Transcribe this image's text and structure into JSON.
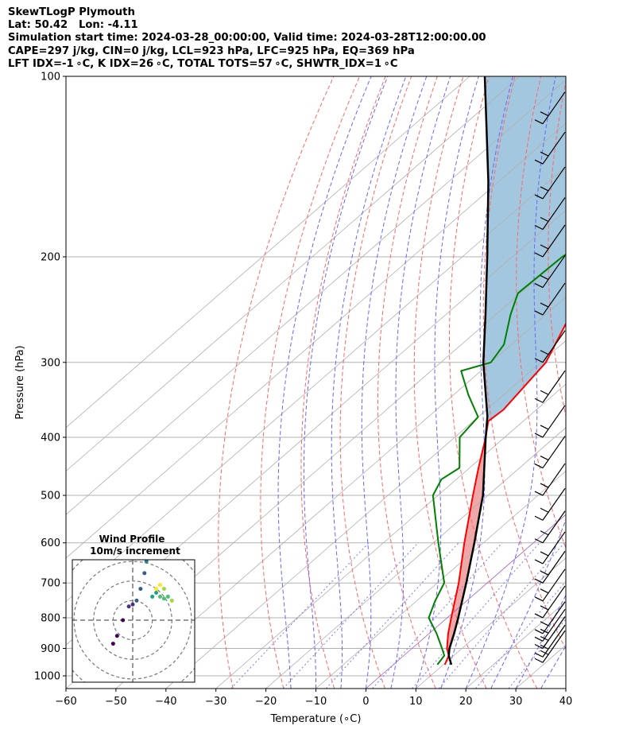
{
  "header": {
    "title": "SkewTLogP Plymouth",
    "location": "Lat: 50.42   Lon: -4.11",
    "times": "Simulation start time: 2024-03-28_00:00:00, Valid time: 2024-03-28T12:00:00.00",
    "indices1": "CAPE=297 j/kg, CIN=0 j/kg, LCL=923 hPa, LFC=925 hPa, EQ=369 hPa",
    "indices2": "LFT IDX=-1 ∘C, K IDX=26 ∘C, TOTAL TOTS=57 ∘C, SHWTR_IDX=1 ∘C"
  },
  "colors": {
    "temperature": "#ff0000",
    "dewpoint": "#008000",
    "parcel": "#000000",
    "cape_fill": "#a3c7df",
    "cin_fill": "#f0a7a7",
    "dry_adiabat": "#ff6666",
    "moist_adiabat": "#6666ff",
    "mixing_ratio": "#7777ff",
    "skew_isotherm": "#b0b0b0",
    "zero_isotherm": "#a060c8"
  },
  "chart_data": [
    {
      "type": "line",
      "subtype": "skew-t log-p",
      "xlabel": "Temperature (∘C)",
      "ylabel": "Pressure (hPa)",
      "xlim": [
        -60,
        40
      ],
      "ylim": [
        1050,
        100
      ],
      "y_scale": "log",
      "x_ticks": [
        -60,
        -50,
        -40,
        -30,
        -20,
        -10,
        0,
        10,
        20,
        30,
        40
      ],
      "x_tick_labels": [
        "−60",
        "−50",
        "−40",
        "−30",
        "−20",
        "−10",
        "0",
        "10",
        "20",
        "30",
        "40"
      ],
      "y_ticks": [
        1000,
        900,
        800,
        700,
        600,
        500,
        400,
        300,
        200,
        100
      ],
      "y_tick_labels": [
        "1000",
        "900",
        "800",
        "700",
        "600",
        "500",
        "400",
        "300",
        "200",
        "100"
      ],
      "grid": true,
      "series": [
        {
          "role": "temperature",
          "points": [
            [
              958,
              10.3
            ],
            [
              925,
              9.0
            ],
            [
              900,
              7.0
            ],
            [
              850,
              3.8
            ],
            [
              800,
              0.8
            ],
            [
              700,
              -5.7
            ],
            [
              600,
              -13.8
            ],
            [
              500,
              -23.0
            ],
            [
              450,
              -28.2
            ],
            [
              400,
              -33.8
            ],
            [
              376,
              -37.0
            ],
            [
              360,
              -36.6
            ],
            [
              300,
              -39.0
            ],
            [
              250,
              -45.0
            ],
            [
              200,
              -50.5
            ],
            [
              180,
              -51.0
            ],
            [
              170,
              -51.6
            ],
            [
              150,
              -55.3
            ],
            [
              130,
              -57.8
            ],
            [
              115,
              -58.3
            ],
            [
              105,
              -58.8
            ],
            [
              100,
              -59.3
            ]
          ]
        },
        {
          "role": "dewpoint",
          "points": [
            [
              958,
              8.8
            ],
            [
              925,
              8.1
            ],
            [
              900,
              6.0
            ],
            [
              850,
              1.5
            ],
            [
              800,
              -3.7
            ],
            [
              750,
              -6.3
            ],
            [
              700,
              -8.6
            ],
            [
              600,
              -19.0
            ],
            [
              500,
              -31.0
            ],
            [
              470,
              -33.0
            ],
            [
              450,
              -32.0
            ],
            [
              400,
              -39.0
            ],
            [
              370,
              -40.0
            ],
            [
              340,
              -47.0
            ],
            [
              310,
              -54.0
            ],
            [
              300,
              -50.0
            ],
            [
              280,
              -51.5
            ],
            [
              250,
              -57.0
            ],
            [
              230,
              -60.5
            ],
            [
              200,
              -60.0
            ],
            [
              180,
              -57.5
            ],
            [
              150,
              -55.0
            ],
            [
              130,
              -55.0
            ],
            [
              100,
              -56.0
            ]
          ]
        },
        {
          "role": "parcel",
          "points": [
            [
              958,
              11.6
            ],
            [
              925,
              9.0
            ],
            [
              900,
              7.5
            ],
            [
              850,
              5.0
            ],
            [
              800,
              2.2
            ],
            [
              700,
              -4.2
            ],
            [
              600,
              -11.8
            ],
            [
              500,
              -21.0
            ],
            [
              400,
              -33.8
            ],
            [
              369,
              -38.3
            ],
            [
              300,
              -51.5
            ],
            [
              250,
              -62.0
            ],
            [
              200,
              -75.0
            ],
            [
              150,
              -92.0
            ],
            [
              100,
              -117.0
            ]
          ]
        }
      ],
      "wind_barbs_pressure": [
        950,
        930,
        900,
        875,
        850,
        800,
        750,
        700,
        650,
        600,
        550,
        500,
        450,
        400,
        350,
        300,
        250,
        225,
        200,
        180,
        160,
        140,
        120,
        100
      ]
    },
    {
      "type": "scatter",
      "subtype": "hodograph",
      "title": "Wind Profile",
      "subtitle": "10m/s increment",
      "xlim": [
        -40,
        40
      ],
      "ylim": [
        -40,
        40
      ],
      "rings": [
        10,
        20,
        30,
        40
      ],
      "grid": true,
      "points": [
        [
          -10,
          -12
        ],
        [
          -8,
          -8
        ],
        [
          -5,
          0
        ],
        [
          -2,
          7
        ],
        [
          0,
          8
        ],
        [
          2,
          10
        ],
        [
          4,
          16
        ],
        [
          6,
          24
        ],
        [
          7,
          30
        ],
        [
          7,
          36
        ],
        [
          10,
          12
        ],
        [
          12,
          14
        ],
        [
          14,
          12
        ],
        [
          16,
          11
        ],
        [
          18,
          12
        ],
        [
          20,
          10
        ],
        [
          16,
          16
        ],
        [
          14,
          18
        ],
        [
          12,
          16
        ]
      ]
    }
  ]
}
